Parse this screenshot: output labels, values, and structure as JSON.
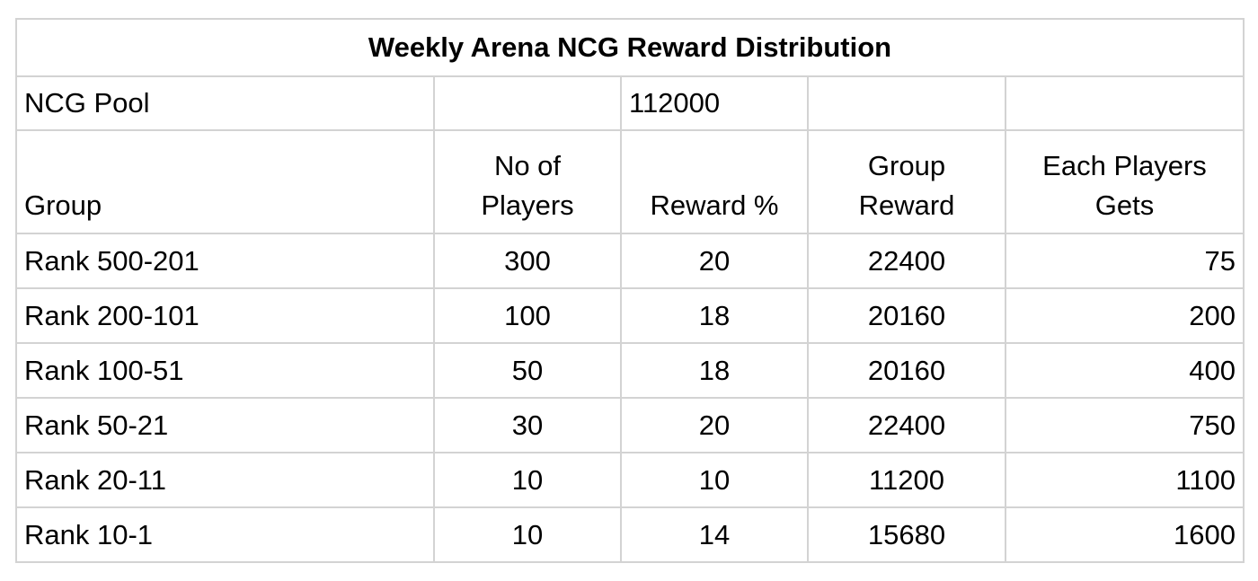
{
  "title": "Weekly Arena NCG Reward Distribution",
  "pool": {
    "label": "NCG Pool",
    "value": "112000"
  },
  "headers": {
    "group": "Group",
    "players_line1": "No of",
    "players_line2": "Players",
    "reward_pct": "Reward %",
    "group_reward_line1": "Group",
    "group_reward_line2": "Reward",
    "each_line1": "Each Players",
    "each_line2": "Gets"
  },
  "rows": [
    {
      "group": "Rank 500-201",
      "players": "300",
      "reward_pct": "20",
      "group_reward": "22400",
      "each": "75"
    },
    {
      "group": "Rank 200-101",
      "players": "100",
      "reward_pct": "18",
      "group_reward": "20160",
      "each": "200"
    },
    {
      "group": "Rank 100-51",
      "players": "50",
      "reward_pct": "18",
      "group_reward": "20160",
      "each": "400"
    },
    {
      "group": "Rank 50-21",
      "players": "30",
      "reward_pct": "20",
      "group_reward": "22400",
      "each": "750"
    },
    {
      "group": "Rank 20-11",
      "players": "10",
      "reward_pct": "10",
      "group_reward": "11200",
      "each": "1100"
    },
    {
      "group": "Rank 10-1",
      "players": "10",
      "reward_pct": "14",
      "group_reward": "15680",
      "each": "1600"
    }
  ]
}
